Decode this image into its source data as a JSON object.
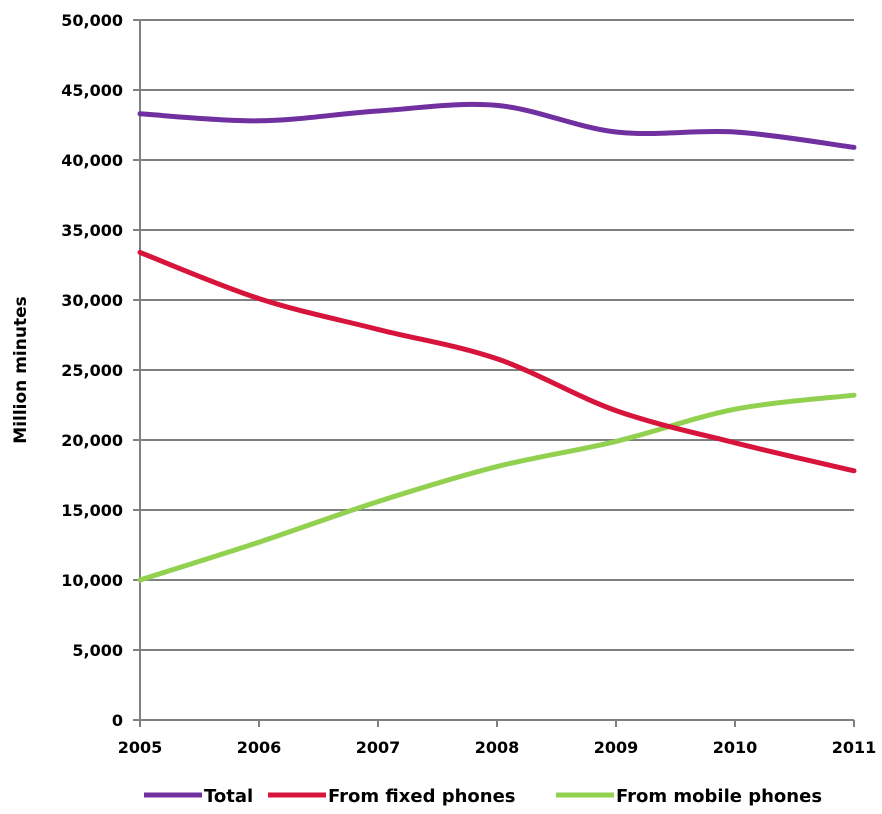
{
  "chart_data": {
    "type": "line",
    "title": "",
    "xlabel": "",
    "ylabel": "Million minutes",
    "x": [
      "2005",
      "2006",
      "2007",
      "2008",
      "2009",
      "2010",
      "2011"
    ],
    "ylim": [
      0,
      50000
    ],
    "yticks": [
      0,
      5000,
      10000,
      15000,
      20000,
      25000,
      30000,
      35000,
      40000,
      45000,
      50000
    ],
    "ytick_labels": [
      "0",
      "5,000",
      "10,000",
      "15,000",
      "20,000",
      "25,000",
      "30,000",
      "35,000",
      "40,000",
      "45,000",
      "50,000"
    ],
    "grid": "horizontal",
    "legend_position": "bottom",
    "series": [
      {
        "name": "Total",
        "color": "#7030a0",
        "values": [
          43300,
          42800,
          43500,
          43900,
          42000,
          42000,
          40900
        ]
      },
      {
        "name": "From fixed phones",
        "color": "#d7143c",
        "values": [
          33400,
          30100,
          27900,
          25800,
          22100,
          19800,
          17800
        ]
      },
      {
        "name": "From mobile phones",
        "color": "#92d050",
        "values": [
          10000,
          12700,
          15600,
          18100,
          19900,
          22200,
          23200
        ]
      }
    ]
  }
}
